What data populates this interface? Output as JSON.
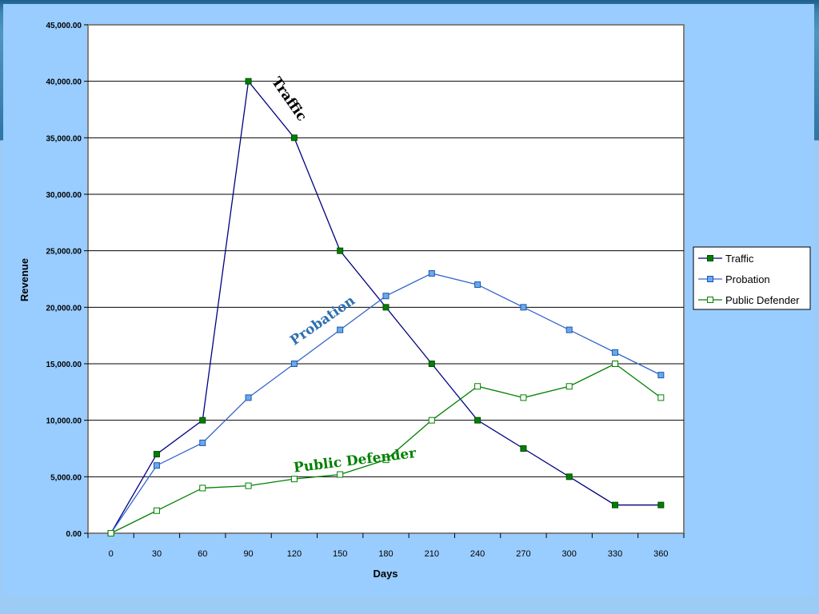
{
  "chart_data": {
    "type": "line",
    "xlabel": "Days",
    "ylabel": "Revenue",
    "x": [
      0,
      30,
      60,
      90,
      120,
      150,
      180,
      210,
      240,
      270,
      300,
      330,
      360
    ],
    "ylim": [
      0,
      45000
    ],
    "yticks": [
      "0.00",
      "5,000.00",
      "10,000.00",
      "15,000.00",
      "20,000.00",
      "25,000.00",
      "30,000.00",
      "35,000.00",
      "40,000.00",
      "45,000.00"
    ],
    "grid": true,
    "legend_position": "right",
    "series": [
      {
        "name": "Traffic",
        "color": "#000080",
        "marker_color": "#008000",
        "marker": "filled-square",
        "values": [
          0,
          7000,
          10000,
          40000,
          35000,
          25000,
          20000,
          15000,
          10000,
          7500,
          5000,
          2500,
          2500
        ]
      },
      {
        "name": "Probation",
        "color": "#3366cc",
        "marker_color": "#66aaee",
        "marker": "filled-square",
        "values": [
          0,
          6000,
          8000,
          12000,
          15000,
          18000,
          21000,
          23000,
          22000,
          20000,
          18000,
          16000,
          14000
        ]
      },
      {
        "name": "Public Defender",
        "color": "#008000",
        "marker_color": "#008000",
        "marker": "hollow-square",
        "values": [
          0,
          2000,
          4000,
          4200,
          4800,
          5200,
          6500,
          10000,
          13000,
          12000,
          13000,
          15000,
          12000
        ]
      }
    ],
    "annotations": [
      {
        "text": "Traffic",
        "color": "#000000",
        "x": 105,
        "y": 40000
      },
      {
        "text": "Probation",
        "color": "#2e6fb0",
        "x": 120,
        "y": 16600
      },
      {
        "text": "Public Defender",
        "color": "#008000",
        "x": 120,
        "y": 5400
      }
    ]
  }
}
